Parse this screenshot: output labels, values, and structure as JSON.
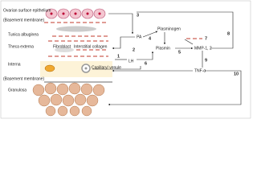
{
  "layers": [
    "Ovarian surface epithelium",
    "(Basement membrane)",
    "Tunica albuginea",
    "Theca externa",
    "Interna",
    "(Basement membrane)",
    "Granulosa"
  ],
  "cells": {
    "fibroblast": "Fibroblast",
    "collagen": "Interstitial collagen",
    "capillary": "Capillary/ venule"
  },
  "nodes": {
    "pa": "PA",
    "plasminogen": "Plasminogen",
    "plasmin": "Plasmin",
    "mmp": "MMP-1, 2",
    "tnf": "TNF-α",
    "lh": "LH"
  },
  "steps": [
    "1",
    "2",
    "3",
    "4",
    "5",
    "6",
    "7",
    "8",
    "9",
    "10"
  ]
}
